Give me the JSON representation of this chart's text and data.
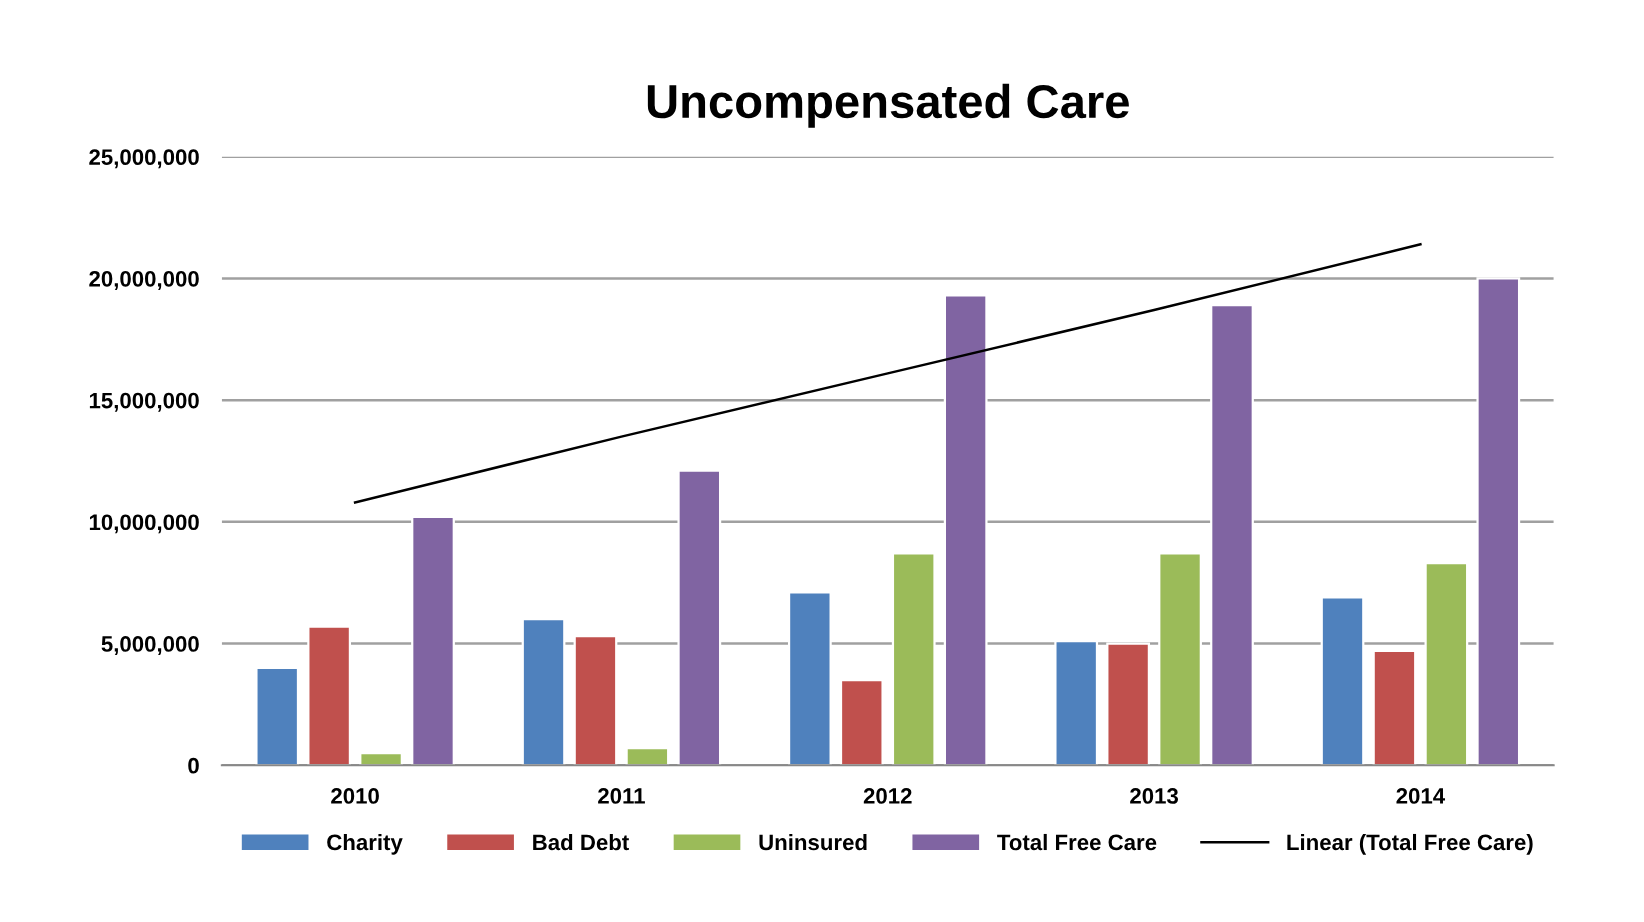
{
  "chart_data": {
    "type": "bar",
    "title": "Uncompensated Care",
    "categories": [
      "2010",
      "2011",
      "2012",
      "2013",
      "2014"
    ],
    "series": [
      {
        "name": "Charity",
        "color": "#4f81bd",
        "values": [
          4000000,
          6000000,
          7100000,
          5100000,
          6900000
        ]
      },
      {
        "name": "Bad Debt",
        "color": "#c0504d",
        "values": [
          5700000,
          5300000,
          3500000,
          5000000,
          4700000
        ]
      },
      {
        "name": "Uninsured",
        "color": "#9bbb59",
        "values": [
          500000,
          700000,
          8700000,
          8700000,
          8300000
        ]
      },
      {
        "name": "Total Free Care",
        "color": "#8064a2",
        "values": [
          10200000,
          12100000,
          19300000,
          18900000,
          20000000
        ]
      },
      {
        "name": "Linear (Total Free Care)",
        "type": "line",
        "color": "#000000",
        "values": [
          10800000,
          13500000,
          16100000,
          18700000,
          21400000
        ]
      }
    ],
    "ylim": [
      0,
      25000000
    ],
    "yticks": [
      {
        "value": 0,
        "label": "0"
      },
      {
        "value": 5000000,
        "label": "5,000,000"
      },
      {
        "value": 10000000,
        "label": "10,000,000"
      },
      {
        "value": 15000000,
        "label": "15,000,000"
      },
      {
        "value": 20000000,
        "label": "20,000,000"
      },
      {
        "value": 25000000,
        "label": "25,000,000"
      }
    ],
    "grid": "y",
    "legend": "bottom"
  }
}
